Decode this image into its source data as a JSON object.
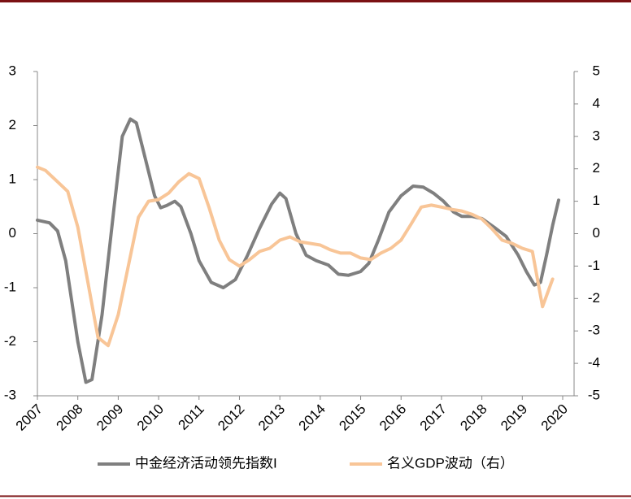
{
  "chart_data": {
    "type": "line",
    "xlim": [
      2007,
      2020
    ],
    "xticks": [
      2007,
      2008,
      2009,
      2010,
      2011,
      2012,
      2013,
      2014,
      2015,
      2016,
      2017,
      2018,
      2019,
      2020
    ],
    "ylim": [
      -3,
      3
    ],
    "yticks": [
      -3,
      -2,
      -1,
      0,
      1,
      2,
      3
    ],
    "y2lim": [
      -5,
      5
    ],
    "y2ticks": [
      -5,
      -4,
      -3,
      -2,
      -1,
      0,
      1,
      2,
      3,
      4,
      5
    ],
    "legend": "bottom",
    "series": [
      {
        "name": "中金经济活动领先指数I",
        "color": "#7f7f7f",
        "axis": "y",
        "x": [
          2007,
          2007.3,
          2007.5,
          2007.7,
          2008,
          2008.2,
          2008.35,
          2008.6,
          2008.9,
          2009.1,
          2009.3,
          2009.45,
          2009.7,
          2009.9,
          2010.05,
          2010.2,
          2010.4,
          2010.55,
          2010.8,
          2011,
          2011.3,
          2011.6,
          2011.9,
          2012.2,
          2012.5,
          2012.8,
          2013,
          2013.15,
          2013.4,
          2013.65,
          2013.9,
          2014.2,
          2014.45,
          2014.7,
          2015,
          2015.2,
          2015.45,
          2015.7,
          2016,
          2016.3,
          2016.55,
          2016.8,
          2017.05,
          2017.3,
          2017.5,
          2017.75,
          2018,
          2018.3,
          2018.6,
          2018.9,
          2019.1,
          2019.3,
          2019.45,
          2019.6,
          2019.75,
          2019.9
        ],
        "values": [
          0.25,
          0.2,
          0.05,
          -0.5,
          -2.0,
          -2.75,
          -2.7,
          -1.5,
          0.5,
          1.8,
          2.12,
          2.05,
          1.3,
          0.7,
          0.48,
          0.52,
          0.6,
          0.5,
          0.0,
          -0.5,
          -0.9,
          -1.0,
          -0.85,
          -0.4,
          0.1,
          0.55,
          0.75,
          0.65,
          0.0,
          -0.4,
          -0.5,
          -0.58,
          -0.75,
          -0.77,
          -0.7,
          -0.55,
          -0.1,
          0.4,
          0.7,
          0.88,
          0.86,
          0.75,
          0.6,
          0.4,
          0.32,
          0.32,
          0.28,
          0.12,
          -0.05,
          -0.4,
          -0.7,
          -0.95,
          -0.9,
          -0.4,
          0.15,
          0.62
        ]
      },
      {
        "name": "名义GDP波动（右）",
        "color": "#f8c597",
        "axis": "y2",
        "x": [
          2007,
          2007.2,
          2007.5,
          2007.75,
          2008,
          2008.25,
          2008.5,
          2008.75,
          2009,
          2009.25,
          2009.5,
          2009.75,
          2010,
          2010.25,
          2010.5,
          2010.75,
          2011,
          2011.25,
          2011.5,
          2011.75,
          2012,
          2012.25,
          2012.5,
          2012.75,
          2013,
          2013.25,
          2013.5,
          2013.75,
          2014,
          2014.25,
          2014.5,
          2014.75,
          2015,
          2015.25,
          2015.5,
          2015.75,
          2016,
          2016.25,
          2016.5,
          2016.75,
          2017,
          2017.25,
          2017.5,
          2017.75,
          2018,
          2018.25,
          2018.5,
          2018.75,
          2019,
          2019.25,
          2019.5,
          2019.75
        ],
        "values": [
          2.05,
          1.95,
          1.6,
          1.3,
          0.2,
          -1.5,
          -3.2,
          -3.45,
          -2.5,
          -1.0,
          0.5,
          1.0,
          1.05,
          1.25,
          1.6,
          1.85,
          1.7,
          0.8,
          -0.2,
          -0.8,
          -1.0,
          -0.8,
          -0.55,
          -0.45,
          -0.2,
          -0.1,
          -0.25,
          -0.3,
          -0.35,
          -0.5,
          -0.6,
          -0.6,
          -0.75,
          -0.8,
          -0.6,
          -0.45,
          -0.2,
          0.3,
          0.82,
          0.88,
          0.82,
          0.75,
          0.7,
          0.6,
          0.45,
          0.15,
          -0.2,
          -0.3,
          -0.45,
          -0.55,
          -2.25,
          -1.4
        ]
      }
    ]
  }
}
